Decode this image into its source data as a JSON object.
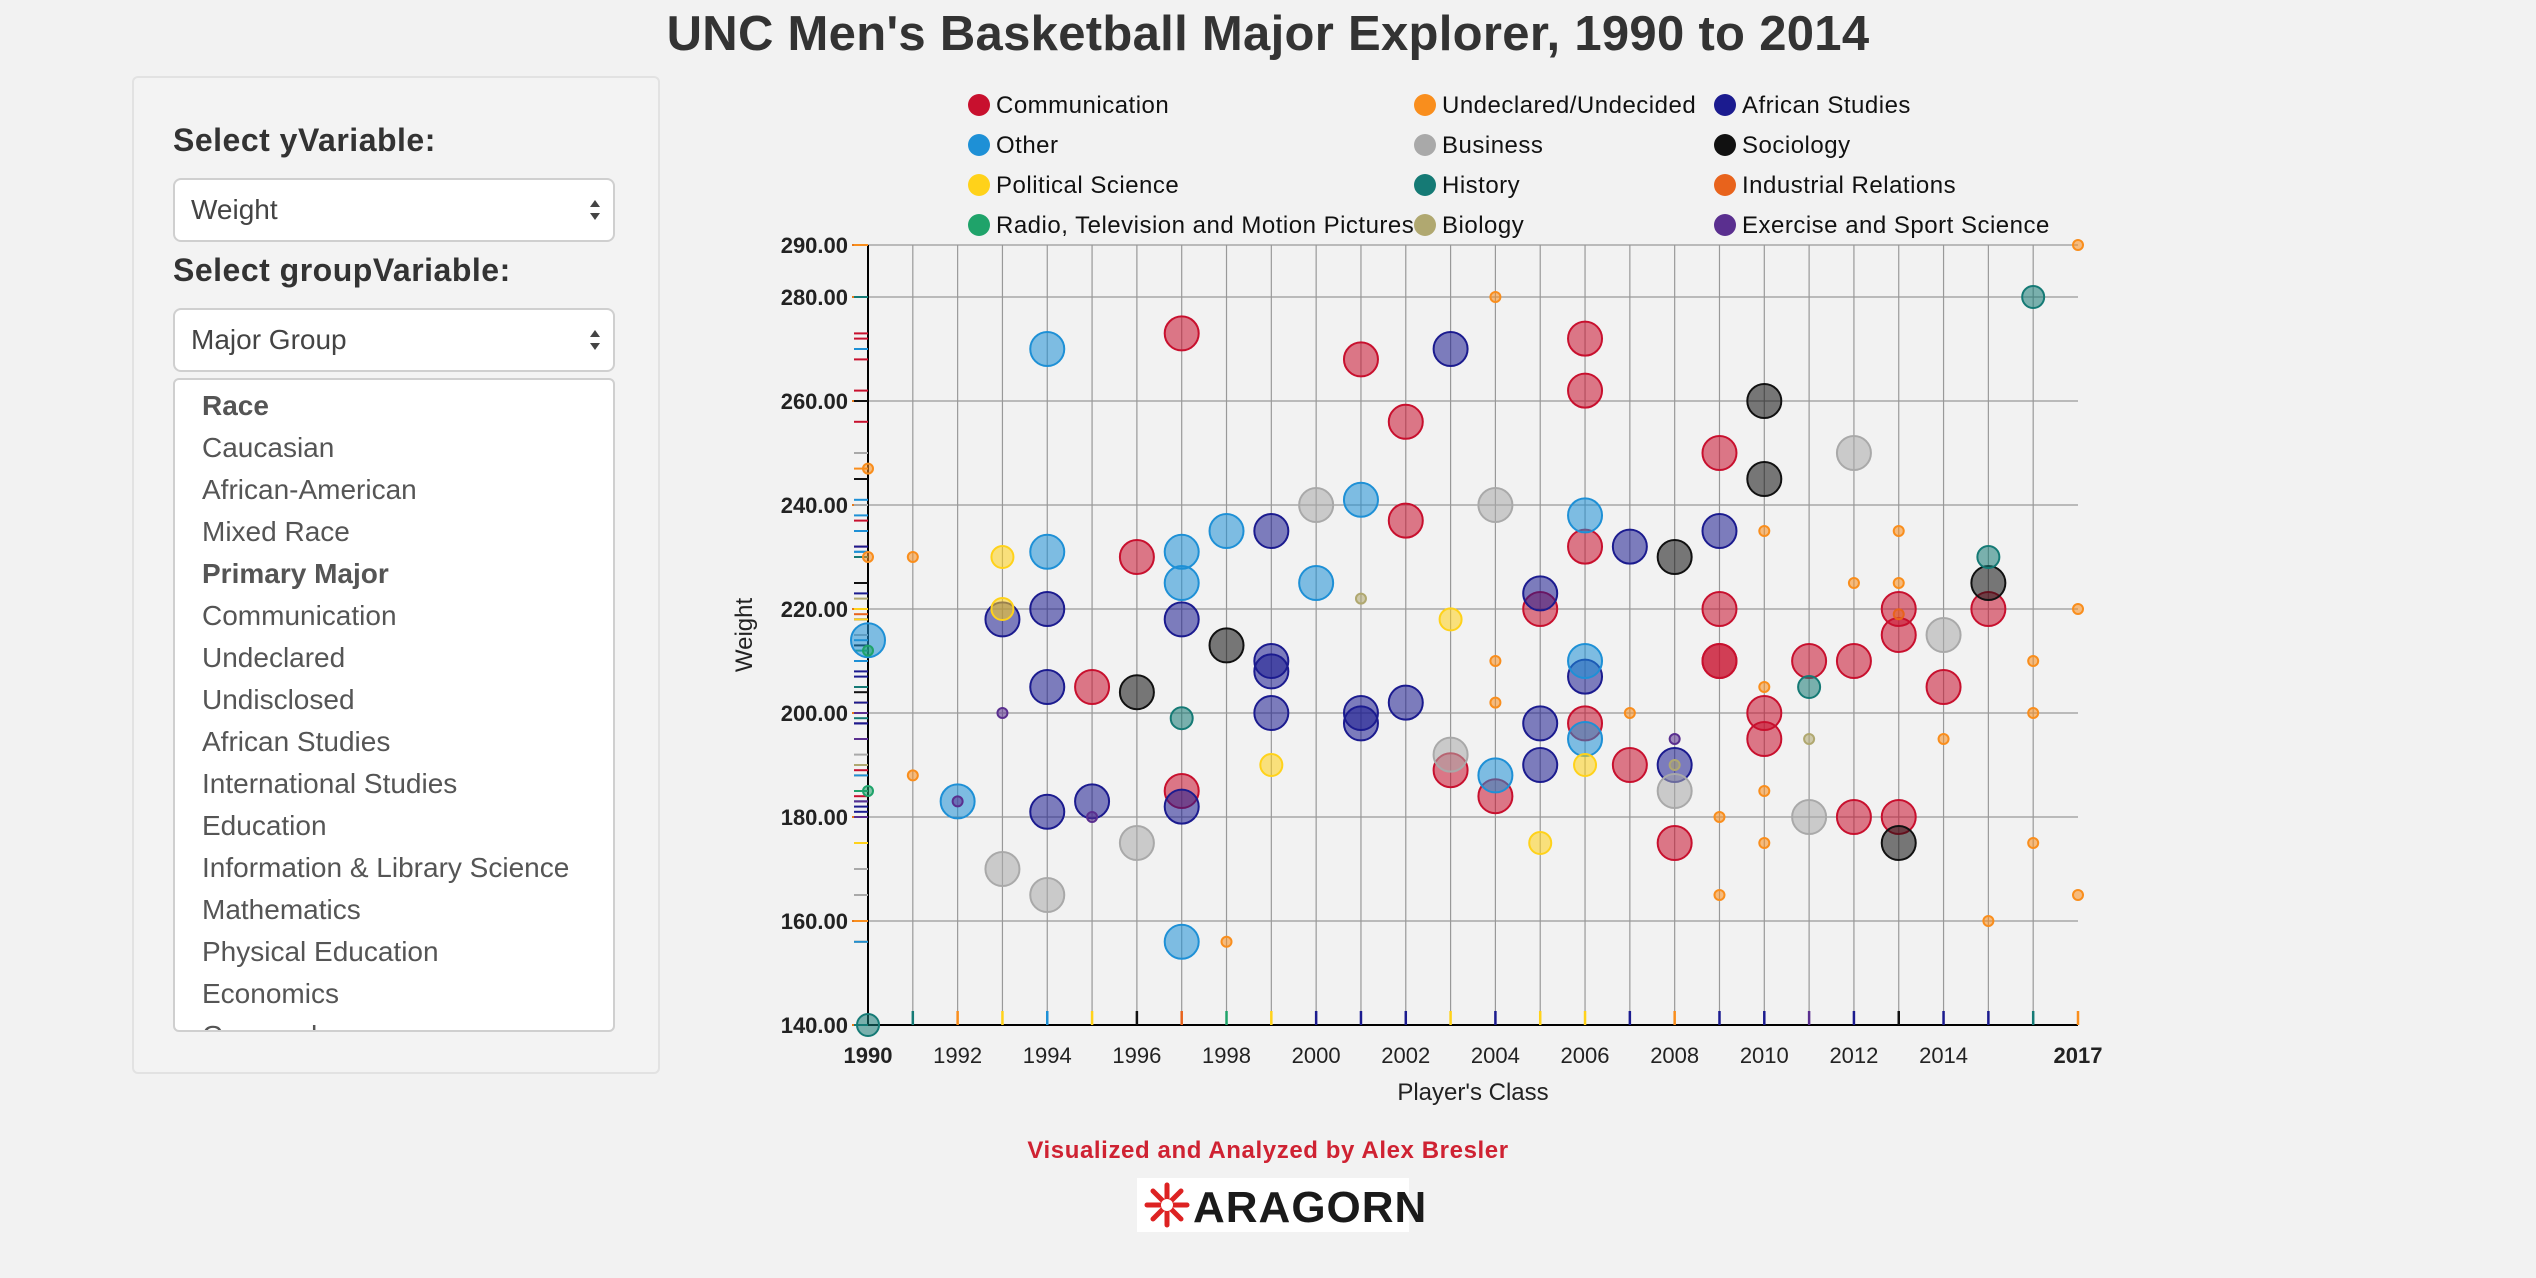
{
  "page": {
    "title": "UNC Men's Basketball Major Explorer, 1990 to 2014",
    "credit": "Visualized and Analyzed by Alex Bresler",
    "logo_text": "ARAGORN"
  },
  "controls": {
    "y_label": "Select yVariable:",
    "y_value": "Weight",
    "group_label": "Select groupVariable:",
    "group_value": "Major Group",
    "options": [
      {
        "label": "Race",
        "group": true
      },
      {
        "label": "Caucasian",
        "group": false
      },
      {
        "label": "African-American",
        "group": false
      },
      {
        "label": "Mixed Race",
        "group": false
      },
      {
        "label": "Primary Major",
        "group": true
      },
      {
        "label": "Communication",
        "group": false
      },
      {
        "label": "Undeclared",
        "group": false
      },
      {
        "label": "Undisclosed",
        "group": false
      },
      {
        "label": "African Studies",
        "group": false
      },
      {
        "label": "International Studies",
        "group": false
      },
      {
        "label": "Education",
        "group": false
      },
      {
        "label": "Information & Library Science",
        "group": false
      },
      {
        "label": "Mathematics",
        "group": false
      },
      {
        "label": "Physical Education",
        "group": false
      },
      {
        "label": "Economics",
        "group": false
      },
      {
        "label": "Geography",
        "group": false
      }
    ]
  },
  "chart_data": {
    "type": "scatter",
    "title": "",
    "xlabel": "Player's Class",
    "ylabel": "Weight",
    "xlim": [
      1990,
      2017
    ],
    "ylim": [
      140,
      290
    ],
    "x_ticks": [
      1990,
      1992,
      1994,
      1996,
      1998,
      2000,
      2002,
      2004,
      2006,
      2008,
      2010,
      2012,
      2014,
      2017
    ],
    "x_ticks_bold": [
      1990,
      2017
    ],
    "y_ticks": [
      "140.00",
      "160.00",
      "180.00",
      "200.00",
      "220.00",
      "240.00",
      "260.00",
      "280.00",
      "290.00"
    ],
    "grid": true,
    "legend_position": "top",
    "series": [
      {
        "name": "Communication",
        "color": "#c8102e",
        "size": "large",
        "points": [
          [
            1995,
            205
          ],
          [
            1996,
            230
          ],
          [
            1997,
            273
          ],
          [
            1997,
            185
          ],
          [
            2001,
            268
          ],
          [
            2002,
            237
          ],
          [
            2002,
            256
          ],
          [
            2003,
            189
          ],
          [
            2004,
            184
          ],
          [
            2005,
            220
          ],
          [
            2006,
            272
          ],
          [
            2006,
            262
          ],
          [
            2006,
            232
          ],
          [
            2006,
            198
          ],
          [
            2007,
            190
          ],
          [
            2008,
            175
          ],
          [
            2009,
            250
          ],
          [
            2009,
            220
          ],
          [
            2009,
            210
          ],
          [
            2009,
            210
          ],
          [
            2010,
            200
          ],
          [
            2010,
            195
          ],
          [
            2011,
            210
          ],
          [
            2012,
            210
          ],
          [
            2012,
            180
          ],
          [
            2013,
            215
          ],
          [
            2013,
            220
          ],
          [
            2013,
            180
          ],
          [
            2014,
            205
          ],
          [
            2015,
            220
          ]
        ]
      },
      {
        "name": "Undeclared/Undecided",
        "color": "#f98e1d",
        "size": "small",
        "points": [
          [
            1990,
            247
          ],
          [
            1990,
            230
          ],
          [
            1991,
            230
          ],
          [
            1991,
            188
          ],
          [
            1998,
            156
          ],
          [
            2004,
            280
          ],
          [
            2004,
            210
          ],
          [
            2004,
            202
          ],
          [
            2007,
            200
          ],
          [
            2009,
            180
          ],
          [
            2009,
            165
          ],
          [
            2010,
            235
          ],
          [
            2010,
            205
          ],
          [
            2010,
            185
          ],
          [
            2010,
            175
          ],
          [
            2012,
            225
          ],
          [
            2013,
            235
          ],
          [
            2013,
            225
          ],
          [
            2014,
            195
          ],
          [
            2015,
            160
          ],
          [
            2016,
            210
          ],
          [
            2016,
            200
          ],
          [
            2016,
            175
          ],
          [
            2017,
            290
          ],
          [
            2017,
            220
          ],
          [
            2017,
            165
          ]
        ]
      },
      {
        "name": "African Studies",
        "color": "#1b1b8f",
        "size": "large",
        "points": [
          [
            1993,
            218
          ],
          [
            1994,
            220
          ],
          [
            1994,
            205
          ],
          [
            1994,
            181
          ],
          [
            1995,
            183
          ],
          [
            1997,
            218
          ],
          [
            1997,
            182
          ],
          [
            1999,
            235
          ],
          [
            1999,
            210
          ],
          [
            1999,
            208
          ],
          [
            1999,
            200
          ],
          [
            2001,
            200
          ],
          [
            2001,
            198
          ],
          [
            2002,
            202
          ],
          [
            2003,
            270
          ],
          [
            2005,
            223
          ],
          [
            2005,
            198
          ],
          [
            2005,
            190
          ],
          [
            2006,
            207
          ],
          [
            2007,
            232
          ],
          [
            2008,
            190
          ],
          [
            2009,
            235
          ]
        ]
      },
      {
        "name": "Other",
        "color": "#1e90d6",
        "size": "large",
        "points": [
          [
            1990,
            214
          ],
          [
            1992,
            183
          ],
          [
            1994,
            270
          ],
          [
            1994,
            231
          ],
          [
            1997,
            231
          ],
          [
            1997,
            225
          ],
          [
            1997,
            156
          ],
          [
            1998,
            235
          ],
          [
            2000,
            225
          ],
          [
            2001,
            241
          ],
          [
            2004,
            188
          ],
          [
            2006,
            238
          ],
          [
            2006,
            210
          ],
          [
            2006,
            195
          ]
        ]
      },
      {
        "name": "Business",
        "color": "#a9a9a9",
        "size": "large",
        "points": [
          [
            1993,
            170
          ],
          [
            1994,
            165
          ],
          [
            1996,
            175
          ],
          [
            2000,
            240
          ],
          [
            2003,
            192
          ],
          [
            2004,
            240
          ],
          [
            2008,
            185
          ],
          [
            2011,
            180
          ],
          [
            2012,
            250
          ],
          [
            2014,
            215
          ]
        ]
      },
      {
        "name": "Sociology",
        "color": "#111111",
        "size": "large",
        "points": [
          [
            1996,
            204
          ],
          [
            1998,
            213
          ],
          [
            2008,
            230
          ],
          [
            2010,
            260
          ],
          [
            2010,
            245
          ],
          [
            2013,
            175
          ],
          [
            2015,
            225
          ]
        ]
      },
      {
        "name": "Political Science",
        "color": "#ffd21a",
        "size": "medium",
        "points": [
          [
            1993,
            230
          ],
          [
            1993,
            220
          ],
          [
            1999,
            190
          ],
          [
            2003,
            218
          ],
          [
            2005,
            175
          ],
          [
            2006,
            190
          ]
        ]
      },
      {
        "name": "History",
        "color": "#157a75",
        "size": "medium",
        "points": [
          [
            1990,
            140
          ],
          [
            1997,
            199
          ],
          [
            2011,
            205
          ],
          [
            2015,
            230
          ],
          [
            2016,
            280
          ]
        ]
      },
      {
        "name": "Industrial Relations",
        "color": "#e8631c",
        "size": "small",
        "points": [
          [
            2013,
            219
          ]
        ]
      },
      {
        "name": "Radio, Television and Motion Pictures",
        "color": "#1fa36a",
        "size": "small",
        "points": [
          [
            1990,
            212
          ],
          [
            1990,
            185
          ]
        ]
      },
      {
        "name": "Biology",
        "color": "#b0a870",
        "size": "small",
        "points": [
          [
            2001,
            222
          ],
          [
            2011,
            195
          ],
          [
            2008,
            190
          ]
        ]
      },
      {
        "name": "Exercise and Sport Science",
        "color": "#5a2f8f",
        "size": "small",
        "points": [
          [
            1992,
            183
          ],
          [
            1993,
            200
          ],
          [
            1995,
            180
          ],
          [
            2008,
            195
          ]
        ]
      }
    ]
  }
}
